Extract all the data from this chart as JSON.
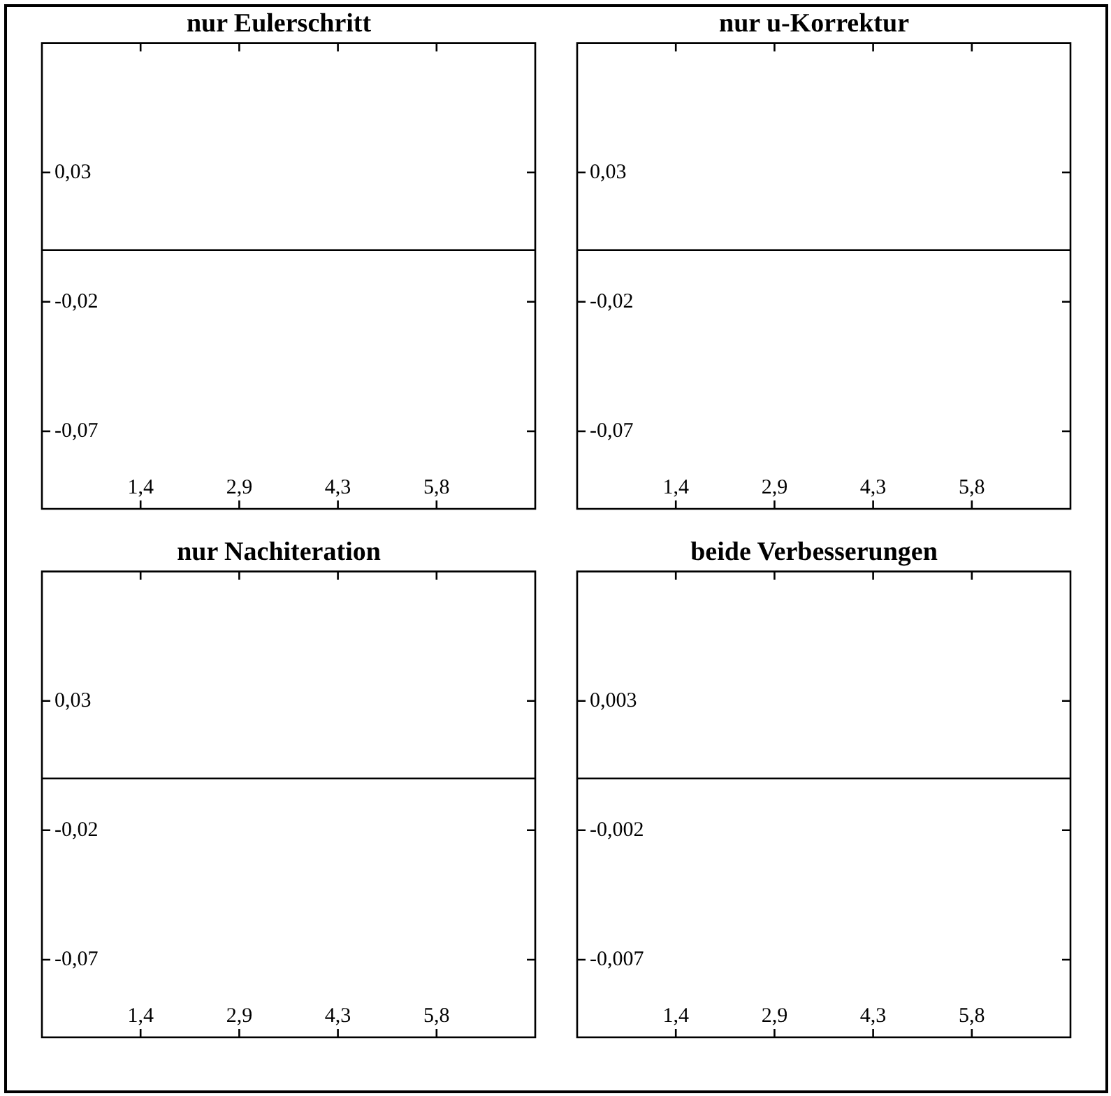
{
  "chart_data": [
    {
      "type": "line",
      "title": "nur Eulerschritt",
      "grid": false,
      "legend": false,
      "ref_lines": [
        {
          "axis": "y",
          "value": 0,
          "color": "#000000"
        }
      ],
      "xlim": [
        0,
        7.2
      ],
      "xticks": [
        {
          "value": 1.44,
          "label": "1,4"
        },
        {
          "value": 2.88,
          "label": "2,9"
        },
        {
          "value": 4.32,
          "label": "4,3"
        },
        {
          "value": 5.76,
          "label": "5,8"
        }
      ],
      "ylim": [
        -0.1,
        0.08
      ],
      "yticks": [
        {
          "value": 0.03,
          "label": "0,03"
        },
        {
          "value": -0.02,
          "label": "-0,02"
        },
        {
          "value": -0.07,
          "label": "-0,07"
        }
      ]
    },
    {
      "type": "line",
      "title": "nur u-Korrektur",
      "grid": false,
      "legend": false,
      "ref_lines": [
        {
          "axis": "y",
          "value": 0,
          "color": "#000000"
        }
      ],
      "xlim": [
        0,
        7.2
      ],
      "xticks": [
        {
          "value": 1.44,
          "label": "1,4"
        },
        {
          "value": 2.88,
          "label": "2,9"
        },
        {
          "value": 4.32,
          "label": "4,3"
        },
        {
          "value": 5.76,
          "label": "5,8"
        }
      ],
      "ylim": [
        -0.1,
        0.08
      ],
      "yticks": [
        {
          "value": 0.03,
          "label": "0,03"
        },
        {
          "value": -0.02,
          "label": "-0,02"
        },
        {
          "value": -0.07,
          "label": "-0,07"
        }
      ]
    },
    {
      "type": "line",
      "title": "nur Nachiteration",
      "grid": false,
      "legend": false,
      "ref_lines": [
        {
          "axis": "y",
          "value": 0,
          "color": "#000000"
        }
      ],
      "xlim": [
        0,
        7.2
      ],
      "xticks": [
        {
          "value": 1.44,
          "label": "1,4"
        },
        {
          "value": 2.88,
          "label": "2,9"
        },
        {
          "value": 4.32,
          "label": "4,3"
        },
        {
          "value": 5.76,
          "label": "5,8"
        }
      ],
      "ylim": [
        -0.1,
        0.08
      ],
      "yticks": [
        {
          "value": 0.03,
          "label": "0,03"
        },
        {
          "value": -0.02,
          "label": "-0,02"
        },
        {
          "value": -0.07,
          "label": "-0,07"
        }
      ]
    },
    {
      "type": "line",
      "title": "beide Verbesserungen",
      "grid": false,
      "legend": false,
      "ref_lines": [
        {
          "axis": "y",
          "value": 0,
          "color": "#000000"
        }
      ],
      "xlim": [
        0,
        7.2
      ],
      "xticks": [
        {
          "value": 1.44,
          "label": "1,4"
        },
        {
          "value": 2.88,
          "label": "2,9"
        },
        {
          "value": 4.32,
          "label": "4,3"
        },
        {
          "value": 5.76,
          "label": "5,8"
        }
      ],
      "ylim": [
        -0.01,
        0.008
      ],
      "yticks": [
        {
          "value": 0.003,
          "label": "0,003"
        },
        {
          "value": -0.002,
          "label": "-0,002"
        },
        {
          "value": -0.007,
          "label": "-0,007"
        }
      ]
    }
  ]
}
